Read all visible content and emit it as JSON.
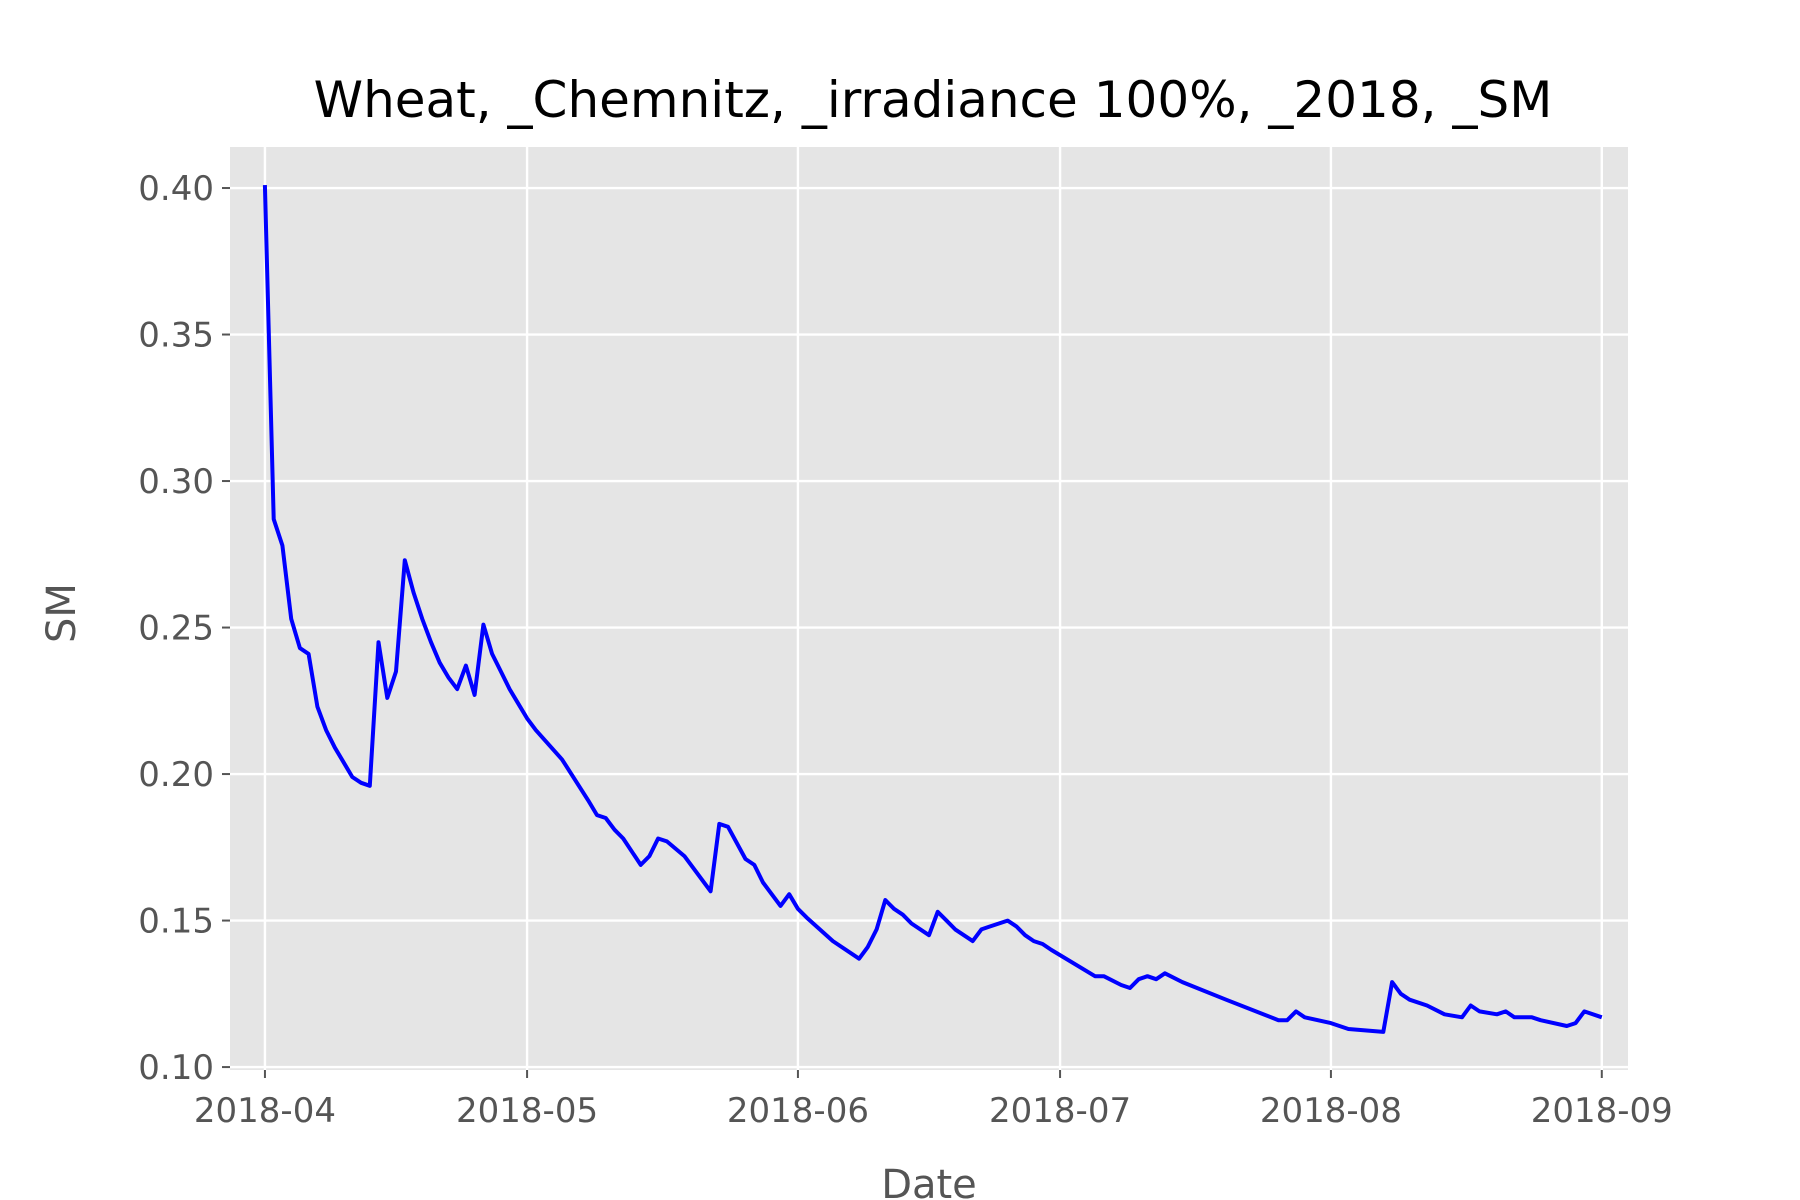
{
  "chart_data": {
    "type": "line",
    "title": "Wheat, _Chemnitz, _irradiance 100%, _2018, _SM",
    "xlabel": "Date",
    "ylabel": "SM",
    "x_tick_labels": [
      "2018-04",
      "2018-05",
      "2018-06",
      "2018-07",
      "2018-08",
      "2018-09"
    ],
    "y_tick_labels": [
      "0.10",
      "0.15",
      "0.20",
      "0.25",
      "0.30",
      "0.35",
      "0.40"
    ],
    "xlim": [
      "2018-03-28",
      "2018-09-04"
    ],
    "ylim": [
      0.099,
      0.414
    ],
    "grid": true,
    "style": "ggplot",
    "colors": {
      "line": "#0000ff",
      "plot_bg": "#e5e5e5",
      "grid": "#ffffff",
      "tick": "#555555"
    },
    "series": [
      {
        "x": [
          "2018-04-01",
          "2018-04-02",
          "2018-04-03",
          "2018-04-04",
          "2018-04-05",
          "2018-04-06",
          "2018-04-07",
          "2018-04-08",
          "2018-04-09",
          "2018-04-10",
          "2018-04-11",
          "2018-04-12",
          "2018-04-13",
          "2018-04-14",
          "2018-04-14",
          "2018-04-15",
          "2018-04-16",
          "2018-04-17",
          "2018-04-18",
          "2018-04-19",
          "2018-04-20",
          "2018-04-21",
          "2018-04-22",
          "2018-04-23",
          "2018-04-24",
          "2018-04-25",
          "2018-04-26",
          "2018-04-27",
          "2018-04-28",
          "2018-04-29",
          "2018-04-30",
          "2018-05-01",
          "2018-05-02",
          "2018-05-05",
          "2018-05-08",
          "2018-05-09",
          "2018-05-10",
          "2018-05-11",
          "2018-05-12",
          "2018-05-14",
          "2018-05-15",
          "2018-05-16",
          "2018-05-17",
          "2018-05-19",
          "2018-05-22",
          "2018-05-23",
          "2018-05-24",
          "2018-05-26",
          "2018-05-27",
          "2018-05-28",
          "2018-05-30",
          "2018-05-31",
          "2018-06-01",
          "2018-06-02",
          "2018-06-05",
          "2018-06-08",
          "2018-06-09",
          "2018-06-10",
          "2018-06-11",
          "2018-06-12",
          "2018-06-13",
          "2018-06-14",
          "2018-06-16",
          "2018-06-17",
          "2018-06-18",
          "2018-06-19",
          "2018-06-21",
          "2018-06-22",
          "2018-06-23",
          "2018-06-25",
          "2018-06-26",
          "2018-06-27",
          "2018-06-28",
          "2018-06-29",
          "2018-06-30",
          "2018-07-05",
          "2018-07-06",
          "2018-07-08",
          "2018-07-09",
          "2018-07-10",
          "2018-07-11",
          "2018-07-12",
          "2018-07-13",
          "2018-07-15",
          "2018-07-20",
          "2018-07-26",
          "2018-07-27",
          "2018-07-28",
          "2018-07-29",
          "2018-08-01",
          "2018-08-03",
          "2018-08-07",
          "2018-08-08",
          "2018-08-09",
          "2018-08-10",
          "2018-08-12",
          "2018-08-14",
          "2018-08-16",
          "2018-08-17",
          "2018-08-18",
          "2018-08-20",
          "2018-08-21",
          "2018-08-22",
          "2018-08-24",
          "2018-08-25",
          "2018-08-28",
          "2018-08-29",
          "2018-08-30",
          "2018-09-01"
        ],
        "y": [
          0.401,
          0.287,
          0.278,
          0.253,
          0.243,
          0.241,
          0.223,
          0.215,
          0.209,
          0.204,
          0.199,
          0.197,
          0.196,
          0.245,
          0.245,
          0.226,
          0.235,
          0.273,
          0.262,
          0.253,
          0.245,
          0.238,
          0.233,
          0.229,
          0.237,
          0.227,
          0.251,
          0.241,
          0.235,
          0.229,
          0.224,
          0.219,
          0.215,
          0.205,
          0.191,
          0.186,
          0.185,
          0.181,
          0.178,
          0.169,
          0.172,
          0.178,
          0.177,
          0.172,
          0.16,
          0.183,
          0.182,
          0.171,
          0.169,
          0.163,
          0.155,
          0.159,
          0.154,
          0.151,
          0.143,
          0.137,
          0.141,
          0.147,
          0.157,
          0.154,
          0.152,
          0.149,
          0.145,
          0.153,
          0.15,
          0.147,
          0.143,
          0.147,
          0.148,
          0.15,
          0.148,
          0.145,
          0.143,
          0.142,
          0.14,
          0.131,
          0.131,
          0.128,
          0.127,
          0.13,
          0.131,
          0.13,
          0.132,
          0.129,
          0.123,
          0.116,
          0.116,
          0.119,
          0.117,
          0.115,
          0.113,
          0.112,
          0.129,
          0.125,
          0.123,
          0.121,
          0.118,
          0.117,
          0.121,
          0.119,
          0.118,
          0.119,
          0.117,
          0.117,
          0.116,
          0.114,
          0.115,
          0.119,
          0.117
        ]
      }
    ]
  }
}
